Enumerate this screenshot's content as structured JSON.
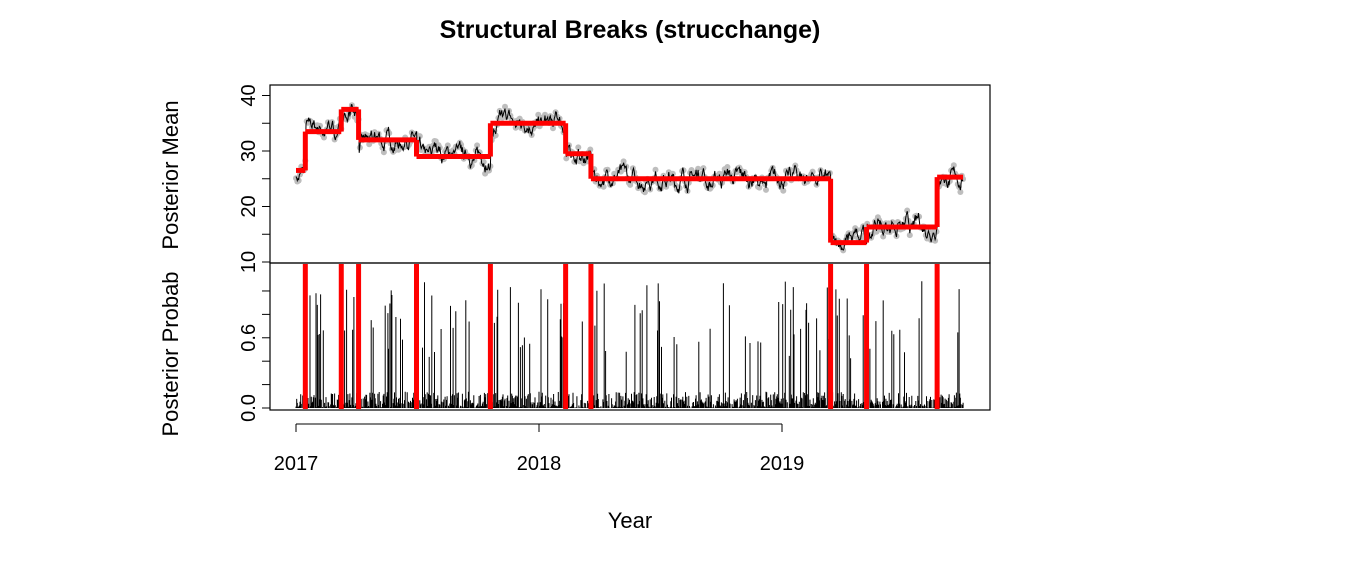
{
  "chart_data": {
    "type": "line",
    "title": "Structural Breaks (strucchange)",
    "xlabel": "Year",
    "x_ticks": [
      "2017",
      "2018",
      "2019"
    ],
    "xlim": [
      "2017-01-01",
      "2019-10-01"
    ],
    "grid": false,
    "legend": "none",
    "colors": {
      "segments": "#ff0000",
      "breaks": "#ff0000",
      "raw_points": "#bebebe",
      "series_line": "#000000"
    },
    "panels": [
      {
        "id": "posterior_mean",
        "ylabel": "Posterior Mean",
        "ylim": [
          10,
          42
        ],
        "y_ticks": [
          "10",
          "20",
          "30",
          "40"
        ],
        "segment_means": [
          {
            "start": "2017-01-01",
            "end": "2017-01-15",
            "value": 26.5
          },
          {
            "start": "2017-01-15",
            "end": "2017-03-10",
            "value": 33.5
          },
          {
            "start": "2017-03-10",
            "end": "2017-04-05",
            "value": 37.5
          },
          {
            "start": "2017-04-05",
            "end": "2017-07-01",
            "value": 32.0
          },
          {
            "start": "2017-07-01",
            "end": "2017-10-20",
            "value": 29.0
          },
          {
            "start": "2017-10-20",
            "end": "2018-02-10",
            "value": 35.0
          },
          {
            "start": "2018-02-10",
            "end": "2018-03-20",
            "value": 29.5
          },
          {
            "start": "2018-03-20",
            "end": "2019-03-15",
            "value": 25.0
          },
          {
            "start": "2019-03-15",
            "end": "2019-05-08",
            "value": 13.5
          },
          {
            "start": "2019-05-08",
            "end": "2019-08-22",
            "value": 16.3
          },
          {
            "start": "2019-08-22",
            "end": "2019-09-30",
            "value": 25.3
          }
        ]
      },
      {
        "id": "posterior_probability",
        "ylabel": "Posterior Probab",
        "ylim": [
          0,
          1
        ],
        "y_ticks": [
          "0.0",
          "0.6"
        ],
        "minor_y_ticks": [
          0.2,
          0.4,
          0.8,
          1.0
        ],
        "breakpoints": [
          "2017-01-15",
          "2017-03-10",
          "2017-04-05",
          "2017-07-01",
          "2017-10-20",
          "2018-02-10",
          "2018-03-20",
          "2019-03-15",
          "2019-05-08",
          "2019-08-22"
        ]
      }
    ]
  }
}
